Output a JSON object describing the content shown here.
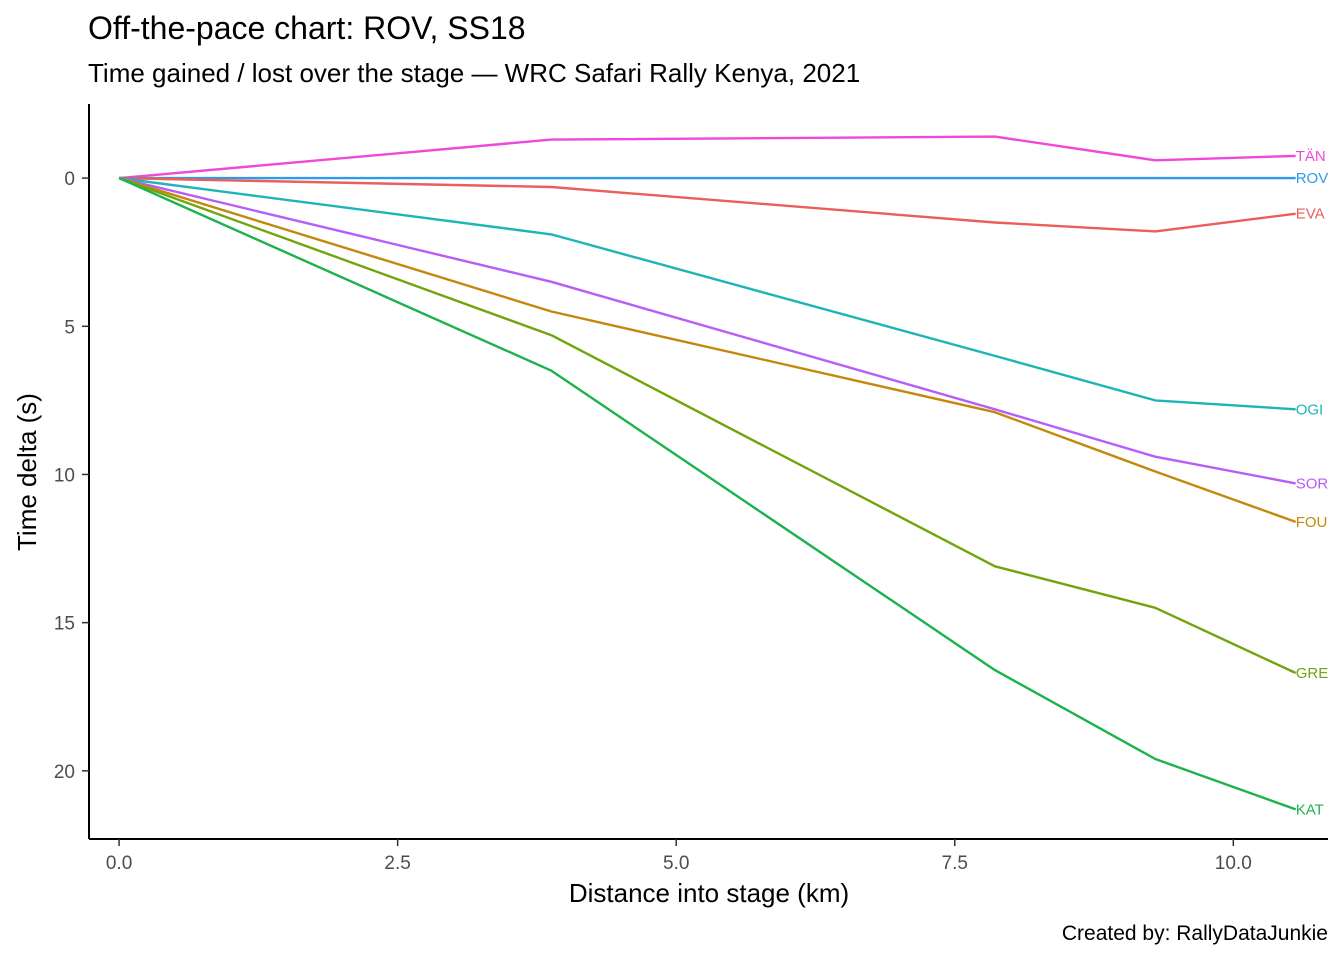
{
  "title": "Off-the-pace chart: ROV, SS18",
  "subtitle": "Time gained / lost over the stage — WRC Safari Rally Kenya, 2021",
  "caption": "Created by: RallyDataJunkie",
  "chart_data": {
    "type": "line",
    "xlabel": "Distance into stage (km)",
    "ylabel": "Time delta (s)",
    "xlim": [
      -0.27,
      10.85
    ],
    "ylim": [
      -2.5,
      22.3
    ],
    "y_reversed": true,
    "grid": false,
    "legend": "none (series labelled at line ends)",
    "x_ticks": [
      0,
      2.5,
      5,
      7.5,
      10
    ],
    "x_tick_labels": [
      "0.0",
      "2.5",
      "5.0",
      "7.5",
      "10.0"
    ],
    "y_ticks": [
      0,
      5,
      10,
      15,
      20
    ],
    "y_tick_labels": [
      "0",
      "5",
      "10",
      "15",
      "20"
    ],
    "x": [
      0,
      3.88,
      7.86,
      9.3,
      10.56
    ],
    "series": [
      {
        "name": "TÄN",
        "color": "#F048D8",
        "values": [
          0,
          -1.3,
          -1.4,
          -0.6,
          -0.75
        ]
      },
      {
        "name": "ROV",
        "color": "#2E9BE8",
        "values": [
          0,
          0,
          0,
          0,
          0
        ]
      },
      {
        "name": "EVA",
        "color": "#EA5F5B",
        "values": [
          0,
          0.3,
          1.5,
          1.8,
          1.2
        ]
      },
      {
        "name": "OGI",
        "color": "#1DB5B5",
        "values": [
          0,
          1.9,
          6.0,
          7.5,
          7.8
        ]
      },
      {
        "name": "SOR",
        "color": "#B65EF7",
        "values": [
          0,
          3.5,
          7.8,
          9.4,
          10.3
        ]
      },
      {
        "name": "FOU",
        "color": "#C3880C",
        "values": [
          0,
          4.5,
          7.9,
          9.9,
          11.6
        ]
      },
      {
        "name": "GRE",
        "color": "#72A40D",
        "values": [
          0,
          5.3,
          13.1,
          14.5,
          16.7
        ]
      },
      {
        "name": "KAT",
        "color": "#1CB24C",
        "values": [
          0,
          6.5,
          16.6,
          19.6,
          21.3
        ]
      }
    ]
  }
}
